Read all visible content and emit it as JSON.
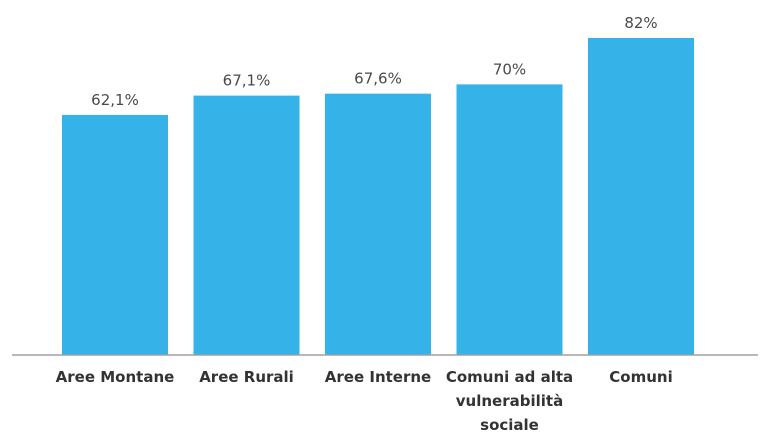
{
  "chart_data": {
    "type": "bar",
    "categories": [
      [
        "Aree Montane"
      ],
      [
        "Aree Rurali"
      ],
      [
        "Aree Interne"
      ],
      [
        "Comuni ad alta",
        "vulnerabilità",
        "sociale"
      ],
      [
        "Comuni"
      ]
    ],
    "values": [
      62.1,
      67.1,
      67.6,
      70,
      82
    ],
    "value_labels": [
      "62,1%",
      "67,1%",
      "67,6%",
      "70%",
      "82%"
    ],
    "title": "",
    "xlabel": "",
    "ylabel": "",
    "ylim": [
      0,
      82
    ],
    "grid": false,
    "legend": "none",
    "colors": {
      "bar": "#35B3E8",
      "axis": "#a0a0a0",
      "value_text": "#4a4a4a",
      "category_text": "#333333"
    }
  }
}
